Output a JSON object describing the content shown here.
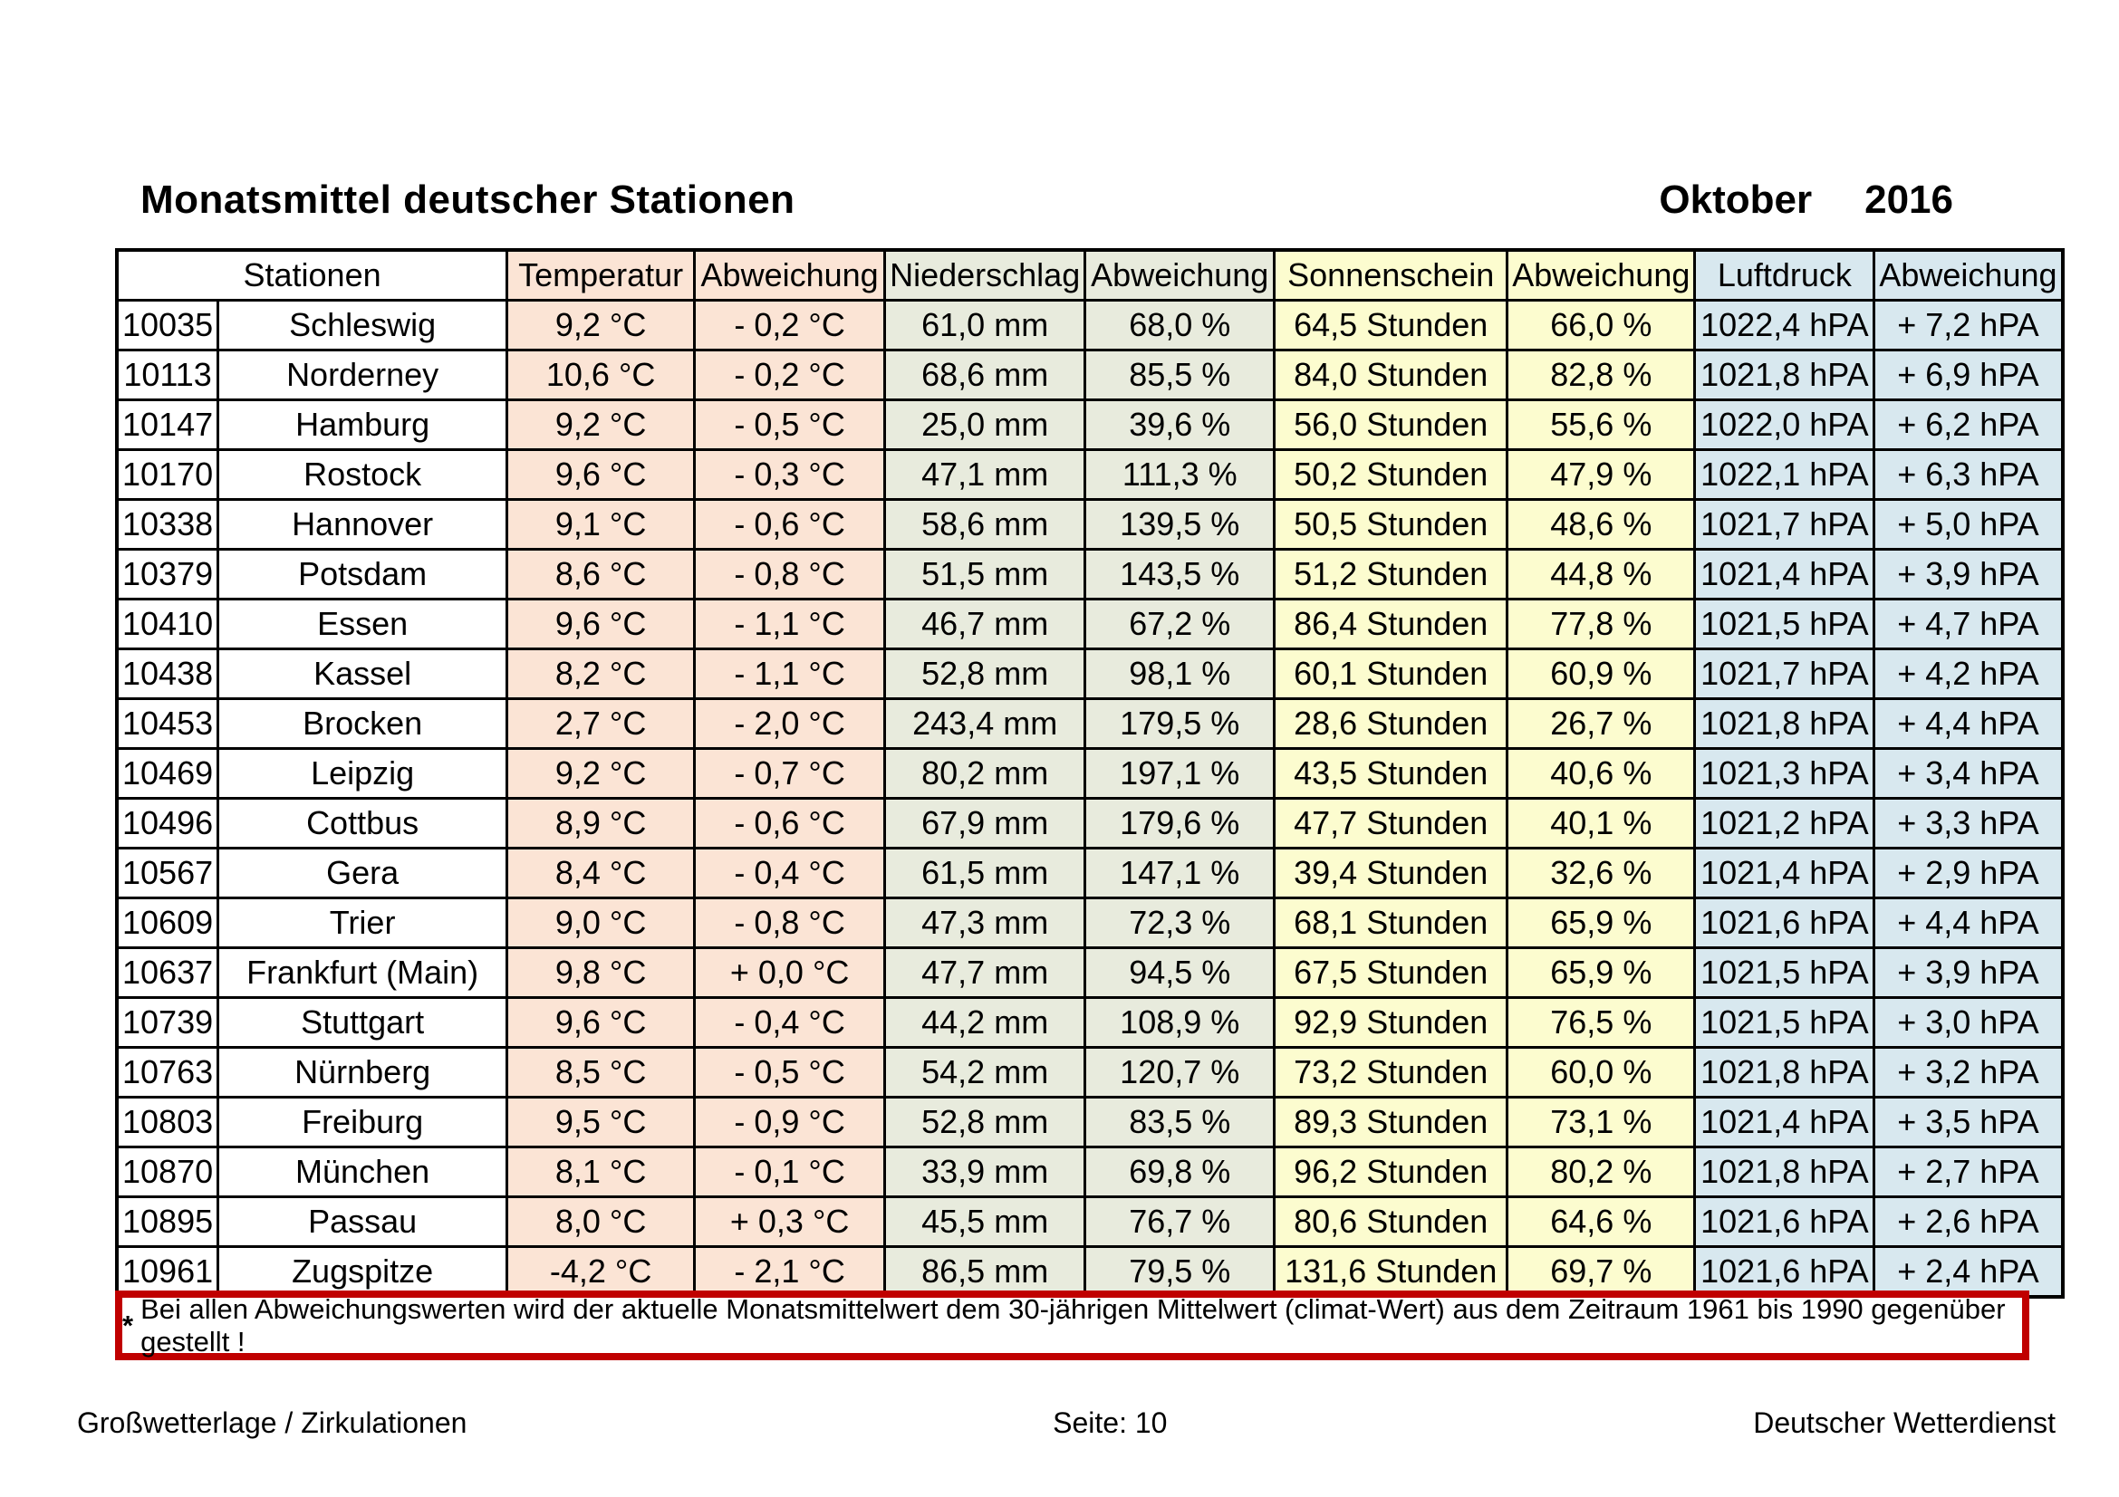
{
  "page": {
    "title": "Monatsmittel deutscher Stationen",
    "month": "Oktober",
    "year": "2016"
  },
  "table": {
    "headers": [
      "Stationen",
      "Temperatur",
      "Abweichung",
      "Niederschlag",
      "Abweichung",
      "Sonnenschein",
      "Abweichung",
      "Luftdruck",
      "Abweichung"
    ],
    "rows": [
      [
        "10035",
        "Schleswig",
        "9,2 °C",
        "- 0,2 °C",
        "61,0 mm",
        "68,0 %",
        "64,5 Stunden",
        "66,0 %",
        "1022,4 hPA",
        "+ 7,2 hPA"
      ],
      [
        "10113",
        "Norderney",
        "10,6 °C",
        "- 0,2 °C",
        "68,6 mm",
        "85,5 %",
        "84,0 Stunden",
        "82,8 %",
        "1021,8 hPA",
        "+ 6,9 hPA"
      ],
      [
        "10147",
        "Hamburg",
        "9,2 °C",
        "- 0,5 °C",
        "25,0 mm",
        "39,6 %",
        "56,0 Stunden",
        "55,6 %",
        "1022,0 hPA",
        "+ 6,2 hPA"
      ],
      [
        "10170",
        "Rostock",
        "9,6 °C",
        "- 0,3 °C",
        "47,1 mm",
        "111,3 %",
        "50,2 Stunden",
        "47,9 %",
        "1022,1 hPA",
        "+ 6,3 hPA"
      ],
      [
        "10338",
        "Hannover",
        "9,1 °C",
        "- 0,6 °C",
        "58,6 mm",
        "139,5 %",
        "50,5 Stunden",
        "48,6 %",
        "1021,7 hPA",
        "+ 5,0 hPA"
      ],
      [
        "10379",
        "Potsdam",
        "8,6 °C",
        "- 0,8 °C",
        "51,5 mm",
        "143,5 %",
        "51,2 Stunden",
        "44,8 %",
        "1021,4 hPA",
        "+ 3,9 hPA"
      ],
      [
        "10410",
        "Essen",
        "9,6 °C",
        "- 1,1 °C",
        "46,7 mm",
        "67,2 %",
        "86,4 Stunden",
        "77,8 %",
        "1021,5 hPA",
        "+ 4,7 hPA"
      ],
      [
        "10438",
        "Kassel",
        "8,2 °C",
        "- 1,1 °C",
        "52,8 mm",
        "98,1 %",
        "60,1 Stunden",
        "60,9 %",
        "1021,7 hPA",
        "+ 4,2 hPA"
      ],
      [
        "10453",
        "Brocken",
        "2,7 °C",
        "- 2,0 °C",
        "243,4 mm",
        "179,5 %",
        "28,6 Stunden",
        "26,7 %",
        "1021,8 hPA",
        "+ 4,4 hPA"
      ],
      [
        "10469",
        "Leipzig",
        "9,2 °C",
        "- 0,7 °C",
        "80,2 mm",
        "197,1 %",
        "43,5 Stunden",
        "40,6 %",
        "1021,3 hPA",
        "+ 3,4 hPA"
      ],
      [
        "10496",
        "Cottbus",
        "8,9 °C",
        "- 0,6 °C",
        "67,9 mm",
        "179,6 %",
        "47,7 Stunden",
        "40,1 %",
        "1021,2 hPA",
        "+ 3,3 hPA"
      ],
      [
        "10567",
        "Gera",
        "8,4 °C",
        "- 0,4 °C",
        "61,5 mm",
        "147,1 %",
        "39,4 Stunden",
        "32,6 %",
        "1021,4 hPA",
        "+ 2,9 hPA"
      ],
      [
        "10609",
        "Trier",
        "9,0 °C",
        "- 0,8 °C",
        "47,3 mm",
        "72,3 %",
        "68,1 Stunden",
        "65,9 %",
        "1021,6 hPA",
        "+ 4,4 hPA"
      ],
      [
        "10637",
        "Frankfurt (Main)",
        "9,8 °C",
        "+ 0,0 °C",
        "47,7 mm",
        "94,5 %",
        "67,5 Stunden",
        "65,9 %",
        "1021,5 hPA",
        "+ 3,9 hPA"
      ],
      [
        "10739",
        "Stuttgart",
        "9,6 °C",
        "- 0,4 °C",
        "44,2 mm",
        "108,9 %",
        "92,9 Stunden",
        "76,5 %",
        "1021,5 hPA",
        "+ 3,0 hPA"
      ],
      [
        "10763",
        "Nürnberg",
        "8,5 °C",
        "- 0,5 °C",
        "54,2 mm",
        "120,7 %",
        "73,2 Stunden",
        "60,0 %",
        "1021,8 hPA",
        "+ 3,2 hPA"
      ],
      [
        "10803",
        "Freiburg",
        "9,5 °C",
        "- 0,9 °C",
        "52,8 mm",
        "83,5 %",
        "89,3 Stunden",
        "73,1 %",
        "1021,4 hPA",
        "+ 3,5 hPA"
      ],
      [
        "10870",
        "München",
        "8,1 °C",
        "- 0,1 °C",
        "33,9 mm",
        "69,8 %",
        "96,2 Stunden",
        "80,2 %",
        "1021,8 hPA",
        "+ 2,7 hPA"
      ],
      [
        "10895",
        "Passau",
        "8,0 °C",
        "+ 0,3 °C",
        "45,5 mm",
        "76,7 %",
        "80,6 Stunden",
        "64,6 %",
        "1021,6 hPA",
        "+ 2,6 hPA"
      ],
      [
        "10961",
        "Zugspitze",
        "-4,2 °C",
        "- 2,1 °C",
        "86,5 mm",
        "79,5 %",
        "131,6 Stunden",
        "69,7 %",
        "1021,6 hPA",
        "+ 2,4 hPA"
      ]
    ]
  },
  "note": {
    "marker": "*",
    "text": "Bei allen Abweichungswerten wird der aktuelle Monatsmittelwert dem 30-jährigen Mittelwert (climat-Wert) aus dem Zeitraum 1961 bis 1990 gegenüber gestellt !"
  },
  "footer": {
    "left": "Großwetterlage / Zirkulationen",
    "center": "Seite: 10",
    "right": "Deutscher Wetterdienst"
  },
  "colors": {
    "temperature_col": "#fbe4d5",
    "precipitation_col": "#e8ebdd",
    "sunshine_col": "#fcfccf",
    "pressure_col": "#d8e8ef",
    "note_border": "#c00000"
  }
}
